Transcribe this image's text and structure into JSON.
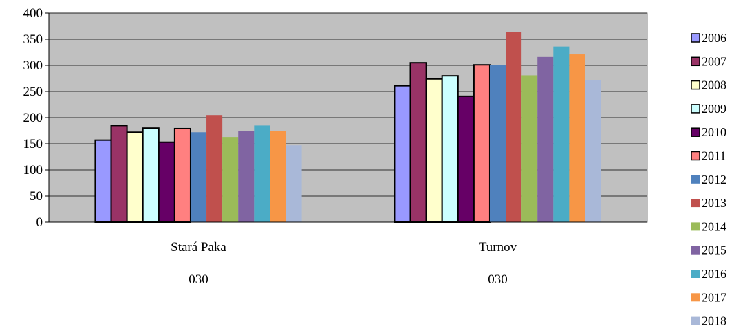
{
  "chart_data": {
    "type": "bar",
    "title": "",
    "xlabel": "",
    "ylabel": "",
    "ylim": [
      0,
      400
    ],
    "yticks": [
      0,
      50,
      100,
      150,
      200,
      250,
      300,
      350,
      400
    ],
    "grid": true,
    "legend_position": "right",
    "categories": [
      "Stará Paka",
      "Turnov"
    ],
    "category_sublabels": [
      "030",
      "030"
    ],
    "series": [
      {
        "name": "2006",
        "color": "#9999FF",
        "values": [
          157,
          261
        ]
      },
      {
        "name": "2007",
        "color": "#993366",
        "values": [
          185,
          305
        ]
      },
      {
        "name": "2008",
        "color": "#FFFFCC",
        "values": [
          172,
          274
        ]
      },
      {
        "name": "2009",
        "color": "#CCFFFF",
        "values": [
          180,
          280
        ]
      },
      {
        "name": "2010",
        "color": "#660066",
        "values": [
          153,
          241
        ]
      },
      {
        "name": "2011",
        "color": "#FF8080",
        "values": [
          179,
          301
        ]
      },
      {
        "name": "2012",
        "color": "#4F81BD",
        "values": [
          172,
          300
        ]
      },
      {
        "name": "2013",
        "color": "#C0504D",
        "values": [
          205,
          364
        ]
      },
      {
        "name": "2014",
        "color": "#9BBB59",
        "values": [
          163,
          281
        ]
      },
      {
        "name": "2015",
        "color": "#8064A2",
        "values": [
          175,
          316
        ]
      },
      {
        "name": "2016",
        "color": "#4BACC6",
        "values": [
          185,
          336
        ]
      },
      {
        "name": "2017",
        "color": "#F79646",
        "values": [
          175,
          321
        ]
      },
      {
        "name": "2018",
        "color": "#A9B8D8",
        "values": [
          147,
          272
        ]
      }
    ],
    "outlined_series": [
      "2006",
      "2007",
      "2008",
      "2009",
      "2010",
      "2011"
    ],
    "plot_background": "#C0C0C0"
  }
}
